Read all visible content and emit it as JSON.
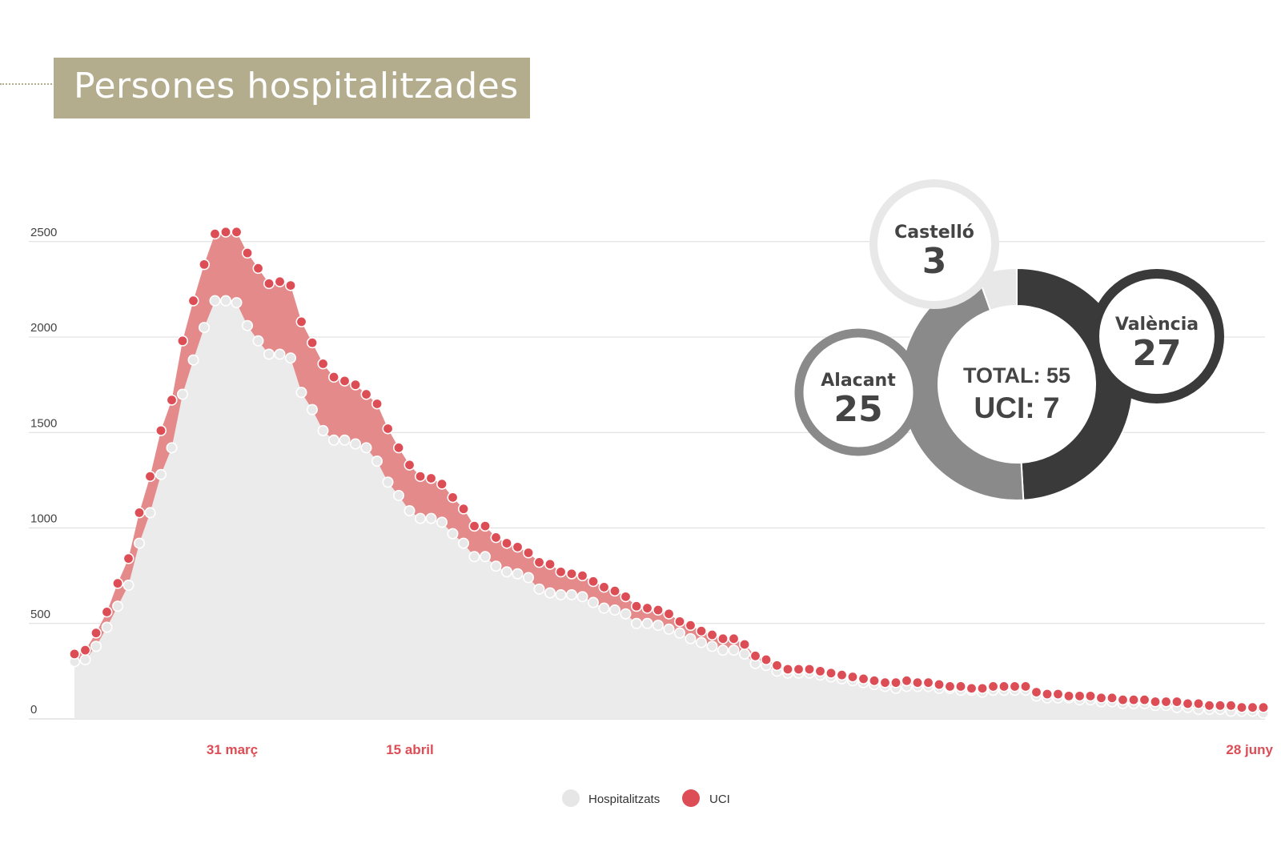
{
  "title": "Persones hospitalitzades",
  "colors": {
    "title_bg": "#b3ad8e",
    "hospitalitzats_fill": "#ebebeb",
    "hospitalitzats_dot": "#e8e8e8",
    "uci_fill": "#e48a8a",
    "uci_dot": "#dc4d55",
    "date_label": "#dc4d55",
    "valencia": "#3a3a3a",
    "alacant": "#8a8a8a",
    "castello": "#e8e8e8"
  },
  "chart_data": {
    "type": "area",
    "title": "Persones hospitalitzades",
    "ylim": [
      0,
      2600
    ],
    "y_ticks": [
      0,
      500,
      1000,
      1500,
      2000,
      2500
    ],
    "x_labels": [
      "31 març",
      "15 abril",
      "28 juny"
    ],
    "grid": true,
    "legend_position": "bottom-center",
    "series": [
      {
        "name": "Hospitalitzats",
        "values": [
          300,
          310,
          380,
          480,
          590,
          700,
          920,
          1080,
          1280,
          1420,
          1700,
          1880,
          2050,
          2190,
          2190,
          2180,
          2060,
          1980,
          1910,
          1910,
          1890,
          1710,
          1620,
          1510,
          1460,
          1460,
          1440,
          1420,
          1350,
          1240,
          1170,
          1090,
          1050,
          1050,
          1030,
          970,
          920,
          850,
          850,
          800,
          770,
          760,
          740,
          680,
          660,
          650,
          650,
          640,
          610,
          580,
          570,
          550,
          500,
          500,
          490,
          470,
          450,
          420,
          400,
          380,
          360,
          360,
          340,
          290,
          280,
          250,
          240,
          240,
          240,
          230,
          220,
          210,
          200,
          190,
          180,
          170,
          160,
          170,
          170,
          170,
          160,
          160,
          150,
          150,
          140,
          150,
          150,
          150,
          150,
          120,
          110,
          110,
          110,
          100,
          100,
          90,
          90,
          80,
          80,
          80,
          70,
          70,
          60,
          60,
          50,
          50,
          50,
          40,
          40,
          40,
          30
        ],
        "color": "#ebebeb"
      },
      {
        "name": "UCI",
        "values": [
          340,
          360,
          450,
          560,
          710,
          840,
          1080,
          1270,
          1510,
          1670,
          1980,
          2190,
          2380,
          2540,
          2550,
          2550,
          2440,
          2360,
          2280,
          2290,
          2270,
          2080,
          1970,
          1860,
          1790,
          1770,
          1750,
          1700,
          1650,
          1520,
          1420,
          1330,
          1270,
          1260,
          1230,
          1160,
          1100,
          1010,
          1010,
          950,
          920,
          900,
          870,
          820,
          810,
          770,
          760,
          750,
          720,
          690,
          670,
          640,
          590,
          580,
          570,
          550,
          510,
          490,
          460,
          440,
          420,
          420,
          390,
          330,
          310,
          280,
          260,
          260,
          260,
          250,
          240,
          230,
          220,
          210,
          200,
          190,
          190,
          200,
          190,
          190,
          180,
          170,
          170,
          160,
          160,
          170,
          170,
          170,
          170,
          140,
          130,
          130,
          120,
          120,
          120,
          110,
          110,
          100,
          100,
          100,
          90,
          90,
          90,
          80,
          80,
          70,
          70,
          70,
          60,
          60,
          60
        ]
      }
    ],
    "donut": {
      "total_label": "TOTAL: 55",
      "uci_label": "UCI: 7",
      "segments": [
        {
          "name": "València",
          "value": 27,
          "color": "#3a3a3a"
        },
        {
          "name": "Alacant",
          "value": 25,
          "color": "#8a8a8a"
        },
        {
          "name": "Castelló",
          "value": 3,
          "color": "#e8e8e8"
        }
      ]
    }
  }
}
